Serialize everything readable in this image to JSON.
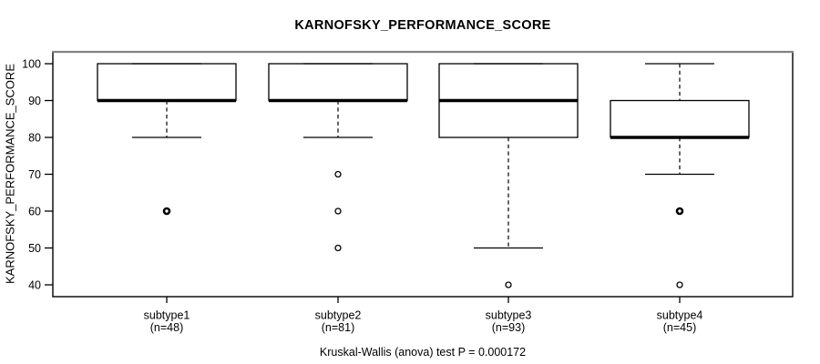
{
  "title": "KARNOFSKY_PERFORMANCE_SCORE",
  "y_axis_label": "KARNOFSKY_PERFORMANCE_SCORE",
  "caption": "Kruskal-Wallis (anova) test P = 0.000172",
  "colors": {
    "line": "#000000",
    "box_fill": "#ffffff",
    "frame_shadow": "#828282",
    "background": "#ffffff"
  },
  "chart_data": {
    "type": "boxplot",
    "title": "KARNOFSKY_PERFORMANCE_SCORE",
    "ylabel": "KARNOFSKY_PERFORMANCE_SCORE",
    "xlabel": "",
    "ylim": [
      40,
      100
    ],
    "yticks": [
      40,
      50,
      60,
      70,
      80,
      90,
      100
    ],
    "grid": false,
    "caption": "Kruskal-Wallis (anova) test P = 0.000172",
    "groups": [
      {
        "label": "subtype1",
        "n_label": "(n=48)",
        "n": 48,
        "whisker_low": 80,
        "q1": 90,
        "median": 90,
        "q3": 100,
        "whisker_high": 100,
        "outliers": [
          {
            "value": 60,
            "bold": true
          }
        ]
      },
      {
        "label": "subtype2",
        "n_label": "(n=81)",
        "n": 81,
        "whisker_low": 80,
        "q1": 90,
        "median": 90,
        "q3": 100,
        "whisker_high": 100,
        "outliers": [
          {
            "value": 70,
            "bold": false
          },
          {
            "value": 60,
            "bold": false
          },
          {
            "value": 50,
            "bold": false
          }
        ]
      },
      {
        "label": "subtype3",
        "n_label": "(n=93)",
        "n": 93,
        "whisker_low": 50,
        "q1": 80,
        "median": 90,
        "q3": 100,
        "whisker_high": 100,
        "outliers": [
          {
            "value": 40,
            "bold": false
          }
        ]
      },
      {
        "label": "subtype4",
        "n_label": "(n=45)",
        "n": 45,
        "whisker_low": 70,
        "q1": 80,
        "median": 80,
        "q3": 90,
        "whisker_high": 100,
        "outliers": [
          {
            "value": 60,
            "bold": true
          },
          {
            "value": 40,
            "bold": false
          }
        ]
      }
    ]
  }
}
